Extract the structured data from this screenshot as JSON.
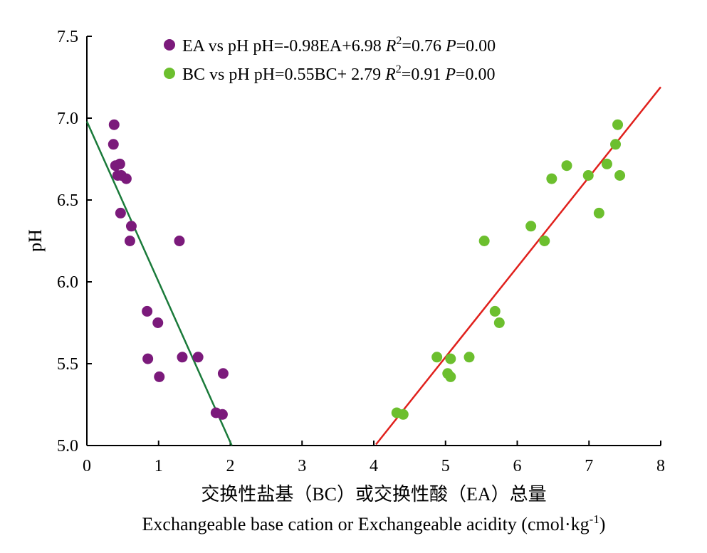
{
  "chart_data": {
    "type": "scatter",
    "xlabel_cn": "交换性盐基（BC）或交换性酸（EA）总量",
    "xlabel_en": "Exchangeable base cation or Exchangeable acidity (cmol·kg",
    "xlabel_en_sup": "-1",
    "xlabel_en_close": ")",
    "ylabel": "pH",
    "xlim": [
      0,
      8
    ],
    "ylim": [
      5.0,
      7.5
    ],
    "x_ticks": [
      "0",
      "1",
      "2",
      "3",
      "4",
      "5",
      "6",
      "7",
      "8"
    ],
    "y_ticks": [
      "5.0",
      "5.5",
      "6.0",
      "6.5",
      "7.0",
      "7.5"
    ],
    "legend_position": "top-center",
    "series": [
      {
        "name": "EA vs pH",
        "color": "#7b1a7b",
        "legend": {
          "name": "EA vs pH",
          "eq": " pH=-0.98EA+6.98 ",
          "r": "R",
          "r_sup": "2",
          "r_val": "=0.76 ",
          "p": "P",
          "p_val": "=0.00"
        },
        "points": [
          [
            0.38,
            6.96
          ],
          [
            0.37,
            6.84
          ],
          [
            0.4,
            6.71
          ],
          [
            0.46,
            6.72
          ],
          [
            0.43,
            6.65
          ],
          [
            0.48,
            6.65
          ],
          [
            0.55,
            6.63
          ],
          [
            0.47,
            6.42
          ],
          [
            0.62,
            6.34
          ],
          [
            0.6,
            6.25
          ],
          [
            1.29,
            6.25
          ],
          [
            0.84,
            5.82
          ],
          [
            0.99,
            5.75
          ],
          [
            0.85,
            5.53
          ],
          [
            1.33,
            5.54
          ],
          [
            1.55,
            5.54
          ],
          [
            1.01,
            5.42
          ],
          [
            1.9,
            5.44
          ],
          [
            1.8,
            5.2
          ],
          [
            1.89,
            5.19
          ]
        ],
        "fit": {
          "slope": -0.98,
          "intercept": 6.98,
          "x_range": [
            0,
            2.02
          ],
          "color": "#1a7a3a"
        }
      },
      {
        "name": "BC vs pH",
        "color": "#6cbf2e",
        "legend": {
          "name": "BC vs pH",
          "eq": " pH=0.55BC+ 2.79 ",
          "r": "R",
          "r_sup": "2",
          "r_val": "=0.91 ",
          "p": "P",
          "p_val": "=0.00"
        },
        "points": [
          [
            7.4,
            6.96
          ],
          [
            7.37,
            6.84
          ],
          [
            6.69,
            6.71
          ],
          [
            7.25,
            6.72
          ],
          [
            6.99,
            6.65
          ],
          [
            7.43,
            6.65
          ],
          [
            6.48,
            6.63
          ],
          [
            7.14,
            6.42
          ],
          [
            6.19,
            6.34
          ],
          [
            6.38,
            6.25
          ],
          [
            5.54,
            6.25
          ],
          [
            5.69,
            5.82
          ],
          [
            5.75,
            5.75
          ],
          [
            4.88,
            5.54
          ],
          [
            5.07,
            5.53
          ],
          [
            5.33,
            5.54
          ],
          [
            5.03,
            5.44
          ],
          [
            5.07,
            5.42
          ],
          [
            4.32,
            5.2
          ],
          [
            4.41,
            5.19
          ]
        ],
        "fit": {
          "slope": 0.55,
          "intercept": 2.79,
          "x_range": [
            4.03,
            8
          ],
          "color": "#e0201c"
        }
      }
    ]
  }
}
